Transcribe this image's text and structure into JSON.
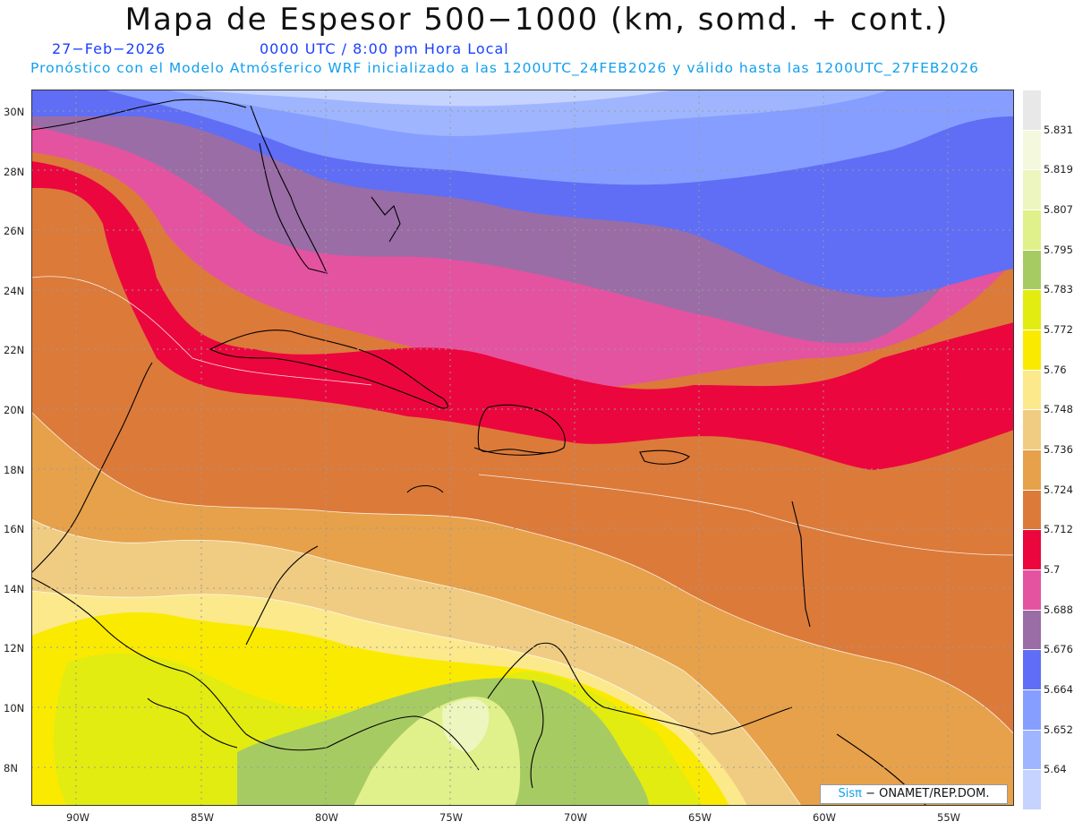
{
  "title": "Mapa de Espesor 500−1000 (km, somd. + cont.)",
  "date": "27−Feb−2026",
  "time": "0000 UTC / 8:00 pm Hora Local",
  "model": "Pronóstico con el Modelo Atmósferico WRF inicializado a las 1200UTC_24FEB2026 y válido hasta las  1200UTC_27FEB2026",
  "credit_brand": "Sisπ",
  "credit_text": "− ONAMET/REP.DOM.",
  "lat_labels": [
    "30N",
    "28N",
    "26N",
    "24N",
    "22N",
    "20N",
    "18N",
    "16N",
    "14N",
    "12N",
    "10N",
    "8N"
  ],
  "lon_labels": [
    "90W",
    "85W",
    "80W",
    "75W",
    "70W",
    "65W",
    "60W",
    "55W"
  ],
  "legend": {
    "levels": [
      "5.64",
      "5.652",
      "5.664",
      "5.676",
      "5.688",
      "5.7",
      "5.712",
      "5.724",
      "5.736",
      "5.748",
      "5.76",
      "5.772",
      "5.783",
      "5.795",
      "5.807",
      "5.819",
      "5.831"
    ],
    "colors": [
      "#c6d3ff",
      "#9fb6ff",
      "#869eff",
      "#5f6ef5",
      "#9a6da6",
      "#e453a0",
      "#ec063e",
      "#dc7a3a",
      "#e7a14a",
      "#f0cc82",
      "#fbe98c",
      "#faea00",
      "#e2ec10",
      "#a7cb63",
      "#e0f08a",
      "#eef6bf",
      "#e8e8e8"
    ]
  },
  "chart_data": {
    "type": "contour-map",
    "title": "Mapa de Espesor 500−1000 (km, somd. + cont.)",
    "units": "km",
    "variable": "500–1000 hPa thickness",
    "domain": {
      "lon": [
        -92,
        -52
      ],
      "lat": [
        7,
        30.5
      ]
    },
    "contour_levels": [
      5.64,
      5.652,
      5.664,
      5.676,
      5.688,
      5.7,
      5.712,
      5.724,
      5.736,
      5.748,
      5.76,
      5.772,
      5.783,
      5.795,
      5.807,
      5.819,
      5.831
    ]
  }
}
